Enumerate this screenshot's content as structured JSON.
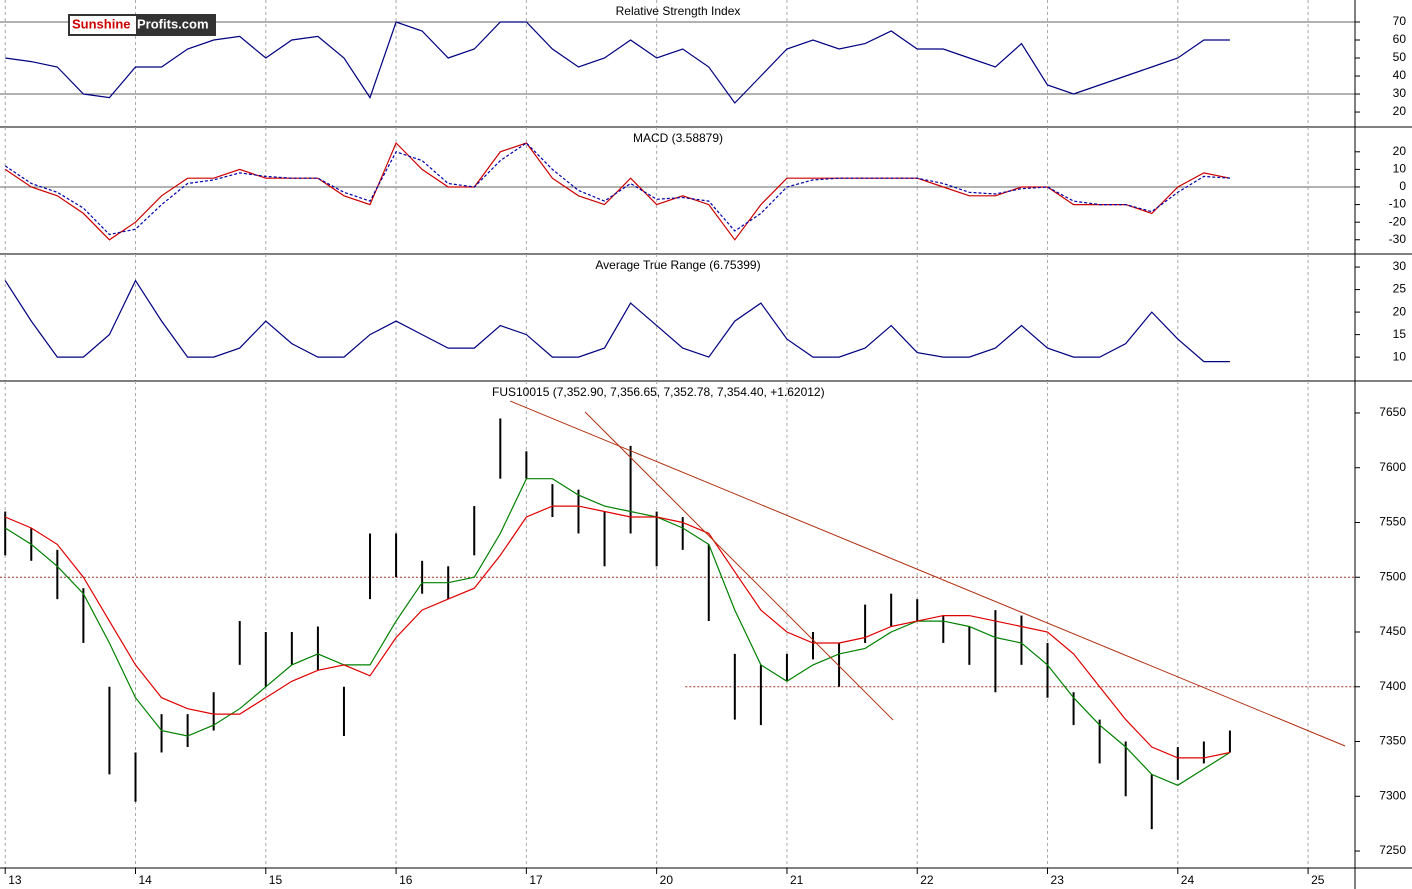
{
  "logo": {
    "part1": "Sunshine",
    "part2": "Profits.com"
  },
  "chart_data": [
    {
      "type": "line",
      "title": "Relative Strength Index",
      "ylim": [
        11.7,
        82.2
      ],
      "yticks": [
        20,
        30,
        40,
        50,
        60,
        70
      ],
      "reference_lines": [
        {
          "y": 70
        },
        {
          "y": 30
        }
      ],
      "x": [
        0,
        0.2,
        0.4,
        0.6,
        0.8,
        1,
        1.2,
        1.4,
        1.6,
        1.8,
        2,
        2.2,
        2.4,
        2.6,
        2.8,
        3,
        3.2,
        3.4,
        3.6,
        3.8,
        4,
        4.2,
        4.4,
        4.6,
        4.8,
        5,
        5.2,
        5.4,
        5.6,
        5.8,
        6,
        6.2,
        6.4,
        6.6,
        6.8,
        7,
        7.2,
        7.4,
        7.6,
        7.8,
        8,
        8.2,
        8.4,
        8.6,
        8.8,
        9,
        9.2,
        9.4
      ],
      "series": [
        {
          "color": "#000080",
          "values": [
            50,
            48,
            45,
            30,
            28,
            45,
            45,
            55,
            60,
            62,
            50,
            60,
            62,
            50,
            28,
            70,
            65,
            50,
            55,
            70,
            70,
            55,
            45,
            50,
            60,
            50,
            55,
            45,
            25,
            40,
            55,
            60,
            55,
            58,
            65,
            55,
            55,
            50,
            45,
            58,
            35,
            30,
            35,
            40,
            45,
            50,
            60,
            60
          ]
        }
      ]
    },
    {
      "type": "line",
      "title": "MACD (3.58879)",
      "ylim": [
        -38.1,
        34.1
      ],
      "yticks": [
        -30,
        -20,
        -10,
        0,
        10,
        20
      ],
      "reference_lines": [
        {
          "y": 0
        }
      ],
      "x": [
        0,
        0.2,
        0.4,
        0.6,
        0.8,
        1,
        1.2,
        1.4,
        1.6,
        1.8,
        2,
        2.2,
        2.4,
        2.6,
        2.8,
        3,
        3.2,
        3.4,
        3.6,
        3.8,
        4,
        4.2,
        4.4,
        4.6,
        4.8,
        5,
        5.2,
        5.4,
        5.6,
        5.8,
        6,
        6.2,
        6.4,
        6.6,
        6.8,
        7,
        7.2,
        7.4,
        7.6,
        7.8,
        8,
        8.2,
        8.4,
        8.6,
        8.8,
        9,
        9.2,
        9.4
      ],
      "series": [
        {
          "color": "#cc0000",
          "values": [
            10,
            0,
            -5,
            -15,
            -30,
            -20,
            -5,
            5,
            5,
            10,
            5,
            5,
            5,
            -5,
            -10,
            25,
            10,
            0,
            0,
            20,
            25,
            5,
            -5,
            -10,
            5,
            -10,
            -5,
            -10,
            -30,
            -10,
            5,
            5,
            5,
            5,
            5,
            5,
            0,
            -5,
            -5,
            0,
            0,
            -10,
            -10,
            -10,
            -15,
            0,
            8,
            5
          ]
        },
        {
          "color": "#0000aa",
          "dashed": true,
          "values": [
            12,
            2,
            -3,
            -12,
            -27,
            -24,
            -10,
            2,
            4,
            8,
            6,
            5,
            5,
            -3,
            -8,
            20,
            15,
            2,
            0,
            15,
            25,
            10,
            -2,
            -8,
            2,
            -7,
            -6,
            -8,
            -25,
            -15,
            0,
            4,
            5,
            5,
            5,
            5,
            2,
            -3,
            -4,
            -1,
            0,
            -8,
            -10,
            -10,
            -14,
            -3,
            6,
            5
          ]
        }
      ]
    },
    {
      "type": "line",
      "title": "Average True Range (6.75399)",
      "ylim": [
        4.7,
        32.9
      ],
      "yticks": [
        10,
        15,
        20,
        25,
        30
      ],
      "x": [
        0,
        0.2,
        0.4,
        0.6,
        0.8,
        1,
        1.2,
        1.4,
        1.6,
        1.8,
        2,
        2.2,
        2.4,
        2.6,
        2.8,
        3,
        3.2,
        3.4,
        3.6,
        3.8,
        4,
        4.2,
        4.4,
        4.6,
        4.8,
        5,
        5.2,
        5.4,
        5.6,
        5.8,
        6,
        6.2,
        6.4,
        6.6,
        6.8,
        7,
        7.2,
        7.4,
        7.6,
        7.8,
        8,
        8.2,
        8.4,
        8.6,
        8.8,
        9,
        9.2,
        9.4
      ],
      "series": [
        {
          "color": "#000080",
          "values": [
            27,
            18,
            10,
            10,
            15,
            27,
            18,
            10,
            10,
            12,
            18,
            13,
            10,
            10,
            15,
            18,
            15,
            12,
            12,
            17,
            15,
            10,
            10,
            12,
            22,
            17,
            12,
            10,
            18,
            22,
            14,
            10,
            10,
            12,
            17,
            11,
            10,
            10,
            12,
            17,
            12,
            10,
            10,
            13,
            20,
            14,
            9,
            9
          ]
        }
      ]
    },
    {
      "type": "ohlc",
      "title": "FUS10015 (7,352.90, 7,356.65, 7,352.78, 7,354.40, +1.62012)",
      "ylim": [
        7234.5,
        7679.2
      ],
      "yticks": [
        7250,
        7300,
        7350,
        7400,
        7450,
        7500,
        7550,
        7600,
        7650
      ],
      "xlim": [
        -0.04,
        10.36
      ],
      "xticks": [
        {
          "value": 0,
          "label": "13"
        },
        {
          "value": 1,
          "label": "14"
        },
        {
          "value": 2,
          "label": "15"
        },
        {
          "value": 3,
          "label": "16"
        },
        {
          "value": 4,
          "label": "17"
        },
        {
          "value": 5,
          "label": "20"
        },
        {
          "value": 6,
          "label": "21"
        },
        {
          "value": 7,
          "label": "22"
        },
        {
          "value": 8,
          "label": "23"
        },
        {
          "value": 9,
          "label": "24"
        },
        {
          "value": 10,
          "label": "25"
        }
      ],
      "reference_lines": [
        {
          "y": 7500
        },
        {
          "y": 7400,
          "x_start": 5.22
        }
      ],
      "trendlines": [
        {
          "color": "#b03010",
          "x": [
            3.876,
            10.284
          ],
          "y": [
            7660.9,
            7345.9
          ]
        },
        {
          "color": "#b03010",
          "x": [
            4.451,
            6.815
          ],
          "y": [
            7650.9,
            7369.6
          ]
        }
      ],
      "x": [
        0,
        0.2,
        0.4,
        0.6,
        0.8,
        1,
        1.2,
        1.4,
        1.6,
        1.8,
        2,
        2.2,
        2.4,
        2.6,
        2.8,
        3,
        3.2,
        3.4,
        3.6,
        3.8,
        4,
        4.2,
        4.4,
        4.6,
        4.8,
        5,
        5.2,
        5.4,
        5.6,
        5.8,
        6,
        6.2,
        6.4,
        6.6,
        6.8,
        7,
        7.2,
        7.4,
        7.6,
        7.8,
        8,
        8.2,
        8.4,
        8.6,
        8.8,
        9,
        9.2,
        9.4
      ],
      "bars": {
        "color": "#000000",
        "high": [
          7560,
          7545,
          7525,
          7490,
          7400,
          7340,
          7375,
          7375,
          7395,
          7460,
          7450,
          7450,
          7455,
          7400,
          7540,
          7540,
          7515,
          7510,
          7565,
          7645,
          7615,
          7585,
          7580,
          7560,
          7620,
          7560,
          7555,
          7530,
          7430,
          7420,
          7430,
          7450,
          7440,
          7475,
          7485,
          7480,
          7465,
          7455,
          7470,
          7465,
          7440,
          7395,
          7370,
          7350,
          7320,
          7345,
          7350,
          7360
        ],
        "low": [
          7520,
          7515,
          7480,
          7440,
          7320,
          7295,
          7340,
          7345,
          7360,
          7420,
          7400,
          7420,
          7415,
          7355,
          7480,
          7500,
          7485,
          7480,
          7520,
          7590,
          7590,
          7555,
          7540,
          7510,
          7540,
          7510,
          7525,
          7460,
          7370,
          7365,
          7405,
          7425,
          7400,
          7440,
          7455,
          7460,
          7440,
          7420,
          7395,
          7420,
          7390,
          7365,
          7330,
          7300,
          7270,
          7315,
          7330,
          7340
        ]
      },
      "series": [
        {
          "color": "#008000",
          "values": [
            7545,
            7530,
            7510,
            7485,
            7440,
            7390,
            7360,
            7355,
            7365,
            7380,
            7400,
            7420,
            7430,
            7420,
            7420,
            7460,
            7495,
            7495,
            7500,
            7540,
            7590,
            7590,
            7575,
            7565,
            7560,
            7555,
            7545,
            7530,
            7470,
            7420,
            7405,
            7420,
            7430,
            7435,
            7450,
            7460,
            7460,
            7455,
            7445,
            7440,
            7420,
            7390,
            7365,
            7345,
            7320,
            7310,
            7325,
            7340
          ]
        },
        {
          "color": "#e00000",
          "values": [
            7555,
            7545,
            7530,
            7500,
            7460,
            7420,
            7390,
            7380,
            7375,
            7375,
            7390,
            7405,
            7415,
            7420,
            7410,
            7445,
            7470,
            7480,
            7490,
            7520,
            7555,
            7565,
            7565,
            7560,
            7555,
            7555,
            7550,
            7540,
            7505,
            7470,
            7450,
            7440,
            7440,
            7445,
            7455,
            7460,
            7465,
            7465,
            7460,
            7455,
            7450,
            7430,
            7400,
            7370,
            7345,
            7335,
            7335,
            7340
          ]
        }
      ]
    }
  ]
}
